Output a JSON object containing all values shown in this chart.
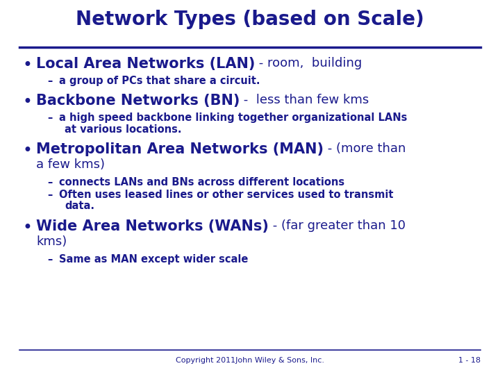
{
  "title": "Network Types (based on Scale)",
  "title_color": "#1a1a8c",
  "bg_color": "#ffffff",
  "text_color": "#1a1a8c",
  "line_color": "#1a1a8c",
  "footer_left": "Copyright 2011John Wiley & Sons, Inc.",
  "footer_right": "1 - 18",
  "figsize": [
    7.2,
    5.4
  ],
  "dpi": 100
}
